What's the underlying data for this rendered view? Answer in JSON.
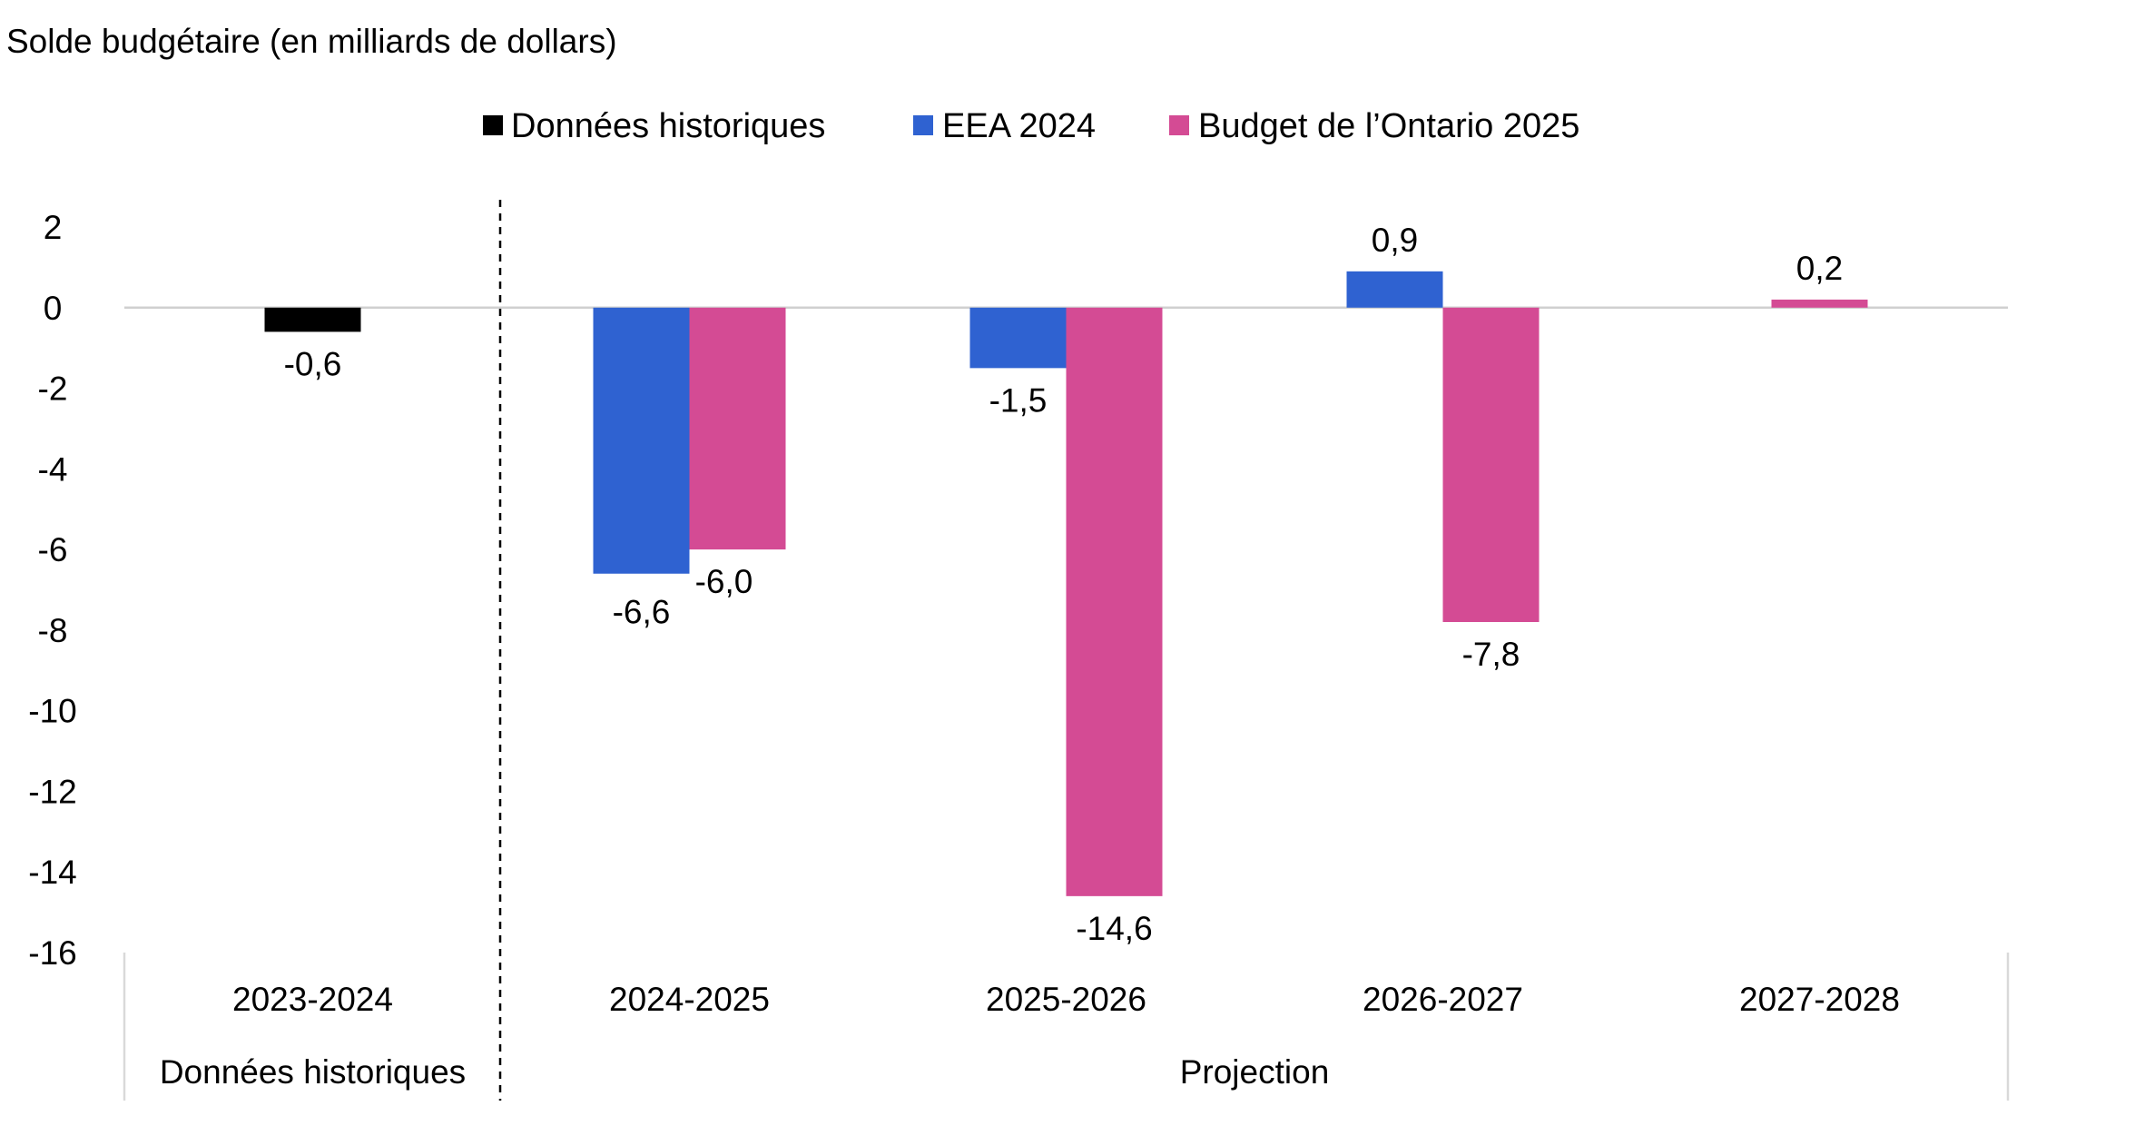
{
  "chart_data": {
    "type": "bar",
    "title": "Solde budgétaire (en milliards de dollars)",
    "categories": [
      "2023-2024",
      "2024-2025",
      "2025-2026",
      "2026-2027",
      "2027-2028"
    ],
    "groups": [
      {
        "label": "Données historiques",
        "categories": [
          "2023-2024"
        ]
      },
      {
        "label": "Projection",
        "categories": [
          "2024-2025",
          "2025-2026",
          "2026-2027",
          "2027-2028"
        ]
      }
    ],
    "series": [
      {
        "name": "Données historiques",
        "color": "#000000",
        "values": [
          -0.6,
          null,
          null,
          null,
          null
        ],
        "labels": [
          "-0,6",
          "",
          "",
          "",
          ""
        ]
      },
      {
        "name": "EEA 2024",
        "color": "#2f62d1",
        "values": [
          null,
          -6.6,
          -1.5,
          0.9,
          null
        ],
        "labels": [
          "",
          "-6,6",
          "-1,5",
          "0,9",
          ""
        ]
      },
      {
        "name": "Budget de l’Ontario 2025",
        "color": "#d44b94",
        "values": [
          null,
          -6.0,
          -14.6,
          -7.8,
          0.2
        ],
        "labels": [
          "",
          "-6,0",
          "-14,6",
          "-7,8",
          "0,2"
        ]
      }
    ],
    "yticks": [
      "2",
      "0",
      "-2",
      "-4",
      "-6",
      "-8",
      "-10",
      "-12",
      "-14",
      "-16"
    ],
    "ylim": [
      -16,
      2
    ],
    "legend_position": "top-center",
    "grid": false
  }
}
